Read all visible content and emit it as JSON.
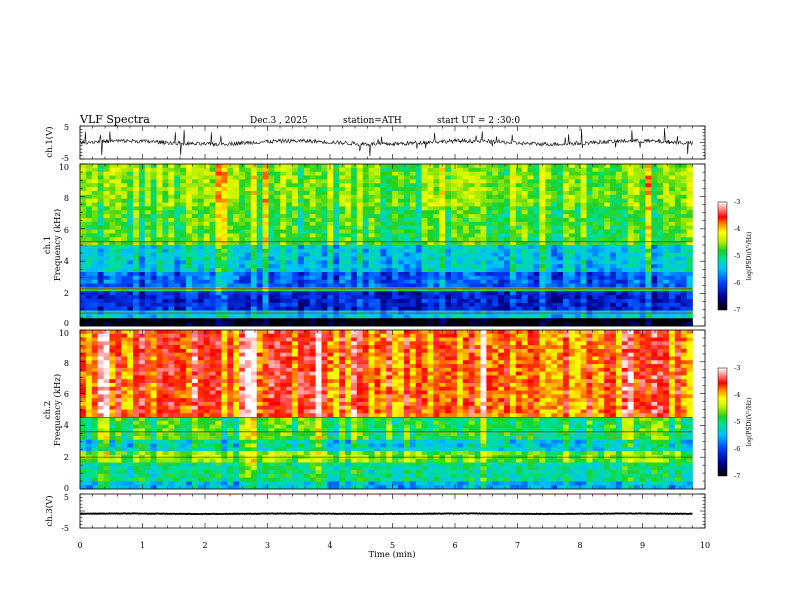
{
  "header": {
    "title": "VLF  Spectra",
    "date": "Dec.3  , 2025",
    "station": "station=ATH",
    "start": "start  UT  =   2  :30:0"
  },
  "chart_data": [
    {
      "type": "line",
      "id": "ch1-waveform",
      "ylabel": "ch.1(V)",
      "ylim": [
        -5,
        5
      ],
      "yticks": [
        "5",
        "-5"
      ],
      "xlim": [
        0,
        10
      ],
      "baseline": 0,
      "noise_amplitude": 1.2,
      "color": "#000000"
    },
    {
      "type": "heatmap",
      "id": "ch1-spectrogram",
      "ylabel": "ch.1\nFrequency  (kHz)",
      "xlim": [
        0,
        9.8
      ],
      "ylim": [
        0,
        10
      ],
      "yticks": [
        "0",
        "2",
        "4",
        "6",
        "8",
        "10"
      ],
      "colorbar": {
        "label": "log(PSD)(V²/Hz)",
        "min": -7,
        "max": -3,
        "ticks": [
          "-3",
          "-4",
          "-5",
          "-6",
          "-7"
        ]
      },
      "bands": [
        {
          "from": 0.0,
          "to": 0.5,
          "level": -7.0
        },
        {
          "from": 0.5,
          "to": 1.0,
          "level": -5.4
        },
        {
          "from": 1.0,
          "to": 2.2,
          "level": -6.2
        },
        {
          "from": 2.2,
          "to": 2.5,
          "level": -5.0
        },
        {
          "from": 2.5,
          "to": 3.4,
          "level": -5.9
        },
        {
          "from": 3.4,
          "to": 5.0,
          "level": -5.4
        },
        {
          "from": 5.0,
          "to": 7.5,
          "level": -4.8
        },
        {
          "from": 7.5,
          "to": 10.0,
          "level": -4.6
        }
      ],
      "lines_khz": [
        2.3,
        5.2,
        0.8
      ]
    },
    {
      "type": "heatmap",
      "id": "ch2-spectrogram",
      "ylabel": "ch.2\nFrequency  (kHz)",
      "xlim": [
        0,
        9.8
      ],
      "ylim": [
        0,
        10
      ],
      "yticks": [
        "0",
        "2",
        "4",
        "6",
        "8",
        "10"
      ],
      "colorbar": {
        "label": "log(PSD)(V²/Hz)",
        "min": -7,
        "max": -3,
        "ticks": [
          "-3",
          "-4",
          "-5",
          "-6",
          "-7"
        ]
      },
      "bands": [
        {
          "from": 0.0,
          "to": 0.4,
          "level": -5.5
        },
        {
          "from": 0.4,
          "to": 1.6,
          "level": -5.1
        },
        {
          "from": 1.6,
          "to": 2.3,
          "level": -4.6
        },
        {
          "from": 2.3,
          "to": 3.2,
          "level": -5.3
        },
        {
          "from": 3.2,
          "to": 4.5,
          "level": -4.9
        },
        {
          "from": 4.5,
          "to": 10.0,
          "level": -3.7
        }
      ],
      "lines_khz": [
        2.0,
        3.6,
        4.5
      ]
    },
    {
      "type": "line",
      "id": "ch3-waveform",
      "ylabel": "ch.3(V)",
      "ylim": [
        -5,
        5
      ],
      "yticks": [
        "5",
        "-5"
      ],
      "xlim": [
        0,
        10
      ],
      "baseline": -0.8,
      "noise_amplitude": 0.15,
      "color": "#000000"
    }
  ],
  "x_axis": {
    "label": "Time  (min)",
    "range": [
      0,
      10
    ],
    "ticks": [
      "0",
      "1",
      "2",
      "3",
      "4",
      "5",
      "6",
      "7",
      "8",
      "9",
      "10"
    ]
  }
}
